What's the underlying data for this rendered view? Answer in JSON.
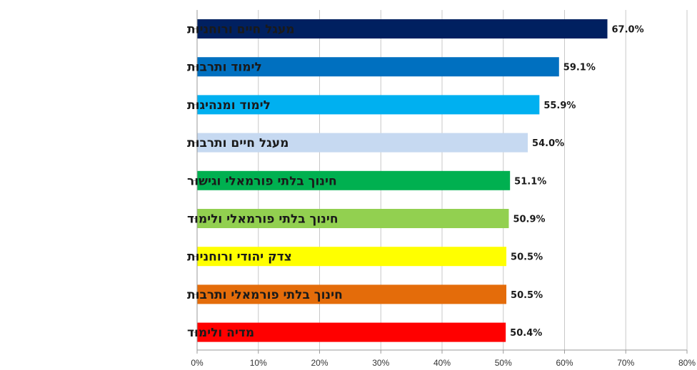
{
  "chart_data": {
    "type": "bar",
    "orientation": "horizontal",
    "categories": [
      "מעגל חיים ורוחניות",
      "לימוד ותרבות",
      "לימוד ומנהיגות",
      "מעגל חיים ותרבות",
      "חינוך בלתי פורמאלי וגישור",
      "חינוך בלתי פורמאלי ולימוד",
      "צדק יהודי ורוחניות",
      "חינוך בלתי פורמאלי ותרבות",
      "מדיה ולימוד"
    ],
    "values": [
      67.0,
      59.1,
      55.9,
      54.0,
      51.1,
      50.9,
      50.5,
      50.5,
      50.4
    ],
    "value_labels": [
      "67.0%",
      "59.1%",
      "55.9%",
      "54.0%",
      "51.1%",
      "50.9%",
      "50.5%",
      "50.5%",
      "50.4%"
    ],
    "colors": [
      "#002060",
      "#0070c0",
      "#00b0f0",
      "#c6d9f1",
      "#00b050",
      "#92d050",
      "#ffff00",
      "#e46c0a",
      "#ff0000"
    ],
    "xlim": [
      0,
      80
    ],
    "xticks": [
      0,
      10,
      20,
      30,
      40,
      50,
      60,
      70,
      80
    ],
    "xtick_labels": [
      "0%",
      "10%",
      "20%",
      "30%",
      "40%",
      "50%",
      "60%",
      "70%",
      "80%"
    ],
    "grid": "vertical",
    "legend": "none",
    "title": "",
    "xlabel": "",
    "ylabel": ""
  }
}
